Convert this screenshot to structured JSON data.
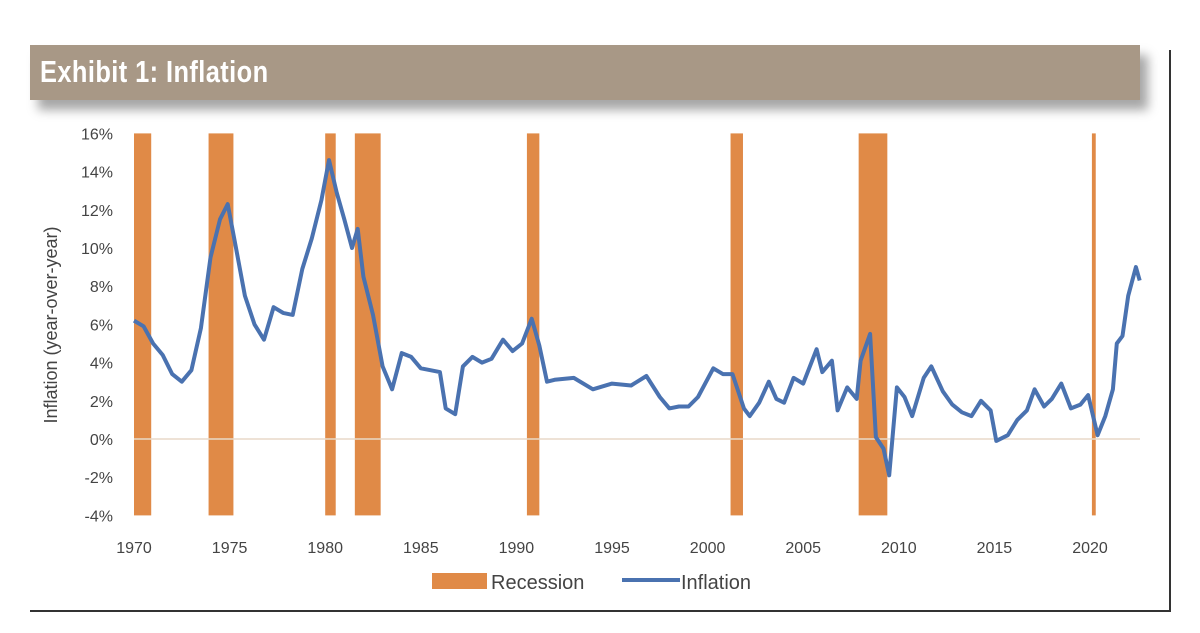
{
  "chart_data": {
    "type": "line",
    "title": "Exhibit 1:  Inflation",
    "ylabel": "Inflation (year-over-year)",
    "xlabel": "",
    "xlim": [
      1970,
      2022.7
    ],
    "ylim": [
      -4,
      16
    ],
    "x_ticks": [
      "1970",
      "1975",
      "1980",
      "1985",
      "1990",
      "1995",
      "2000",
      "2005",
      "2010",
      "2015",
      "2020"
    ],
    "y_ticks": [
      "16%",
      "14%",
      "12%",
      "10%",
      "8%",
      "6%",
      "4%",
      "2%",
      "0%",
      "-2%",
      "-4%"
    ],
    "grid": false,
    "legend_position": "bottom",
    "legend": [
      "Recession",
      "Inflation"
    ],
    "colors": {
      "recession": "#e08a47",
      "inflation": "#4a72b0",
      "header": "#a89886",
      "zero_line": "#e8d9c8"
    },
    "recessions": [
      [
        1970.0,
        1970.9
      ],
      [
        1973.9,
        1975.2
      ],
      [
        1980.0,
        1980.55
      ],
      [
        1981.55,
        1982.9
      ],
      [
        1990.55,
        1991.2
      ],
      [
        2001.2,
        2001.85
      ],
      [
        2007.9,
        2009.4
      ],
      [
        2020.1,
        2020.3
      ]
    ],
    "series": [
      {
        "name": "Inflation",
        "points": [
          [
            1970.0,
            6.2
          ],
          [
            1970.5,
            5.9
          ],
          [
            1971.0,
            5.0
          ],
          [
            1971.5,
            4.4
          ],
          [
            1972.0,
            3.4
          ],
          [
            1972.5,
            3.0
          ],
          [
            1973.0,
            3.6
          ],
          [
            1973.5,
            5.8
          ],
          [
            1974.0,
            9.5
          ],
          [
            1974.5,
            11.5
          ],
          [
            1974.9,
            12.3
          ],
          [
            1975.3,
            10.2
          ],
          [
            1975.8,
            7.5
          ],
          [
            1976.3,
            6.0
          ],
          [
            1976.8,
            5.2
          ],
          [
            1977.3,
            6.9
          ],
          [
            1977.8,
            6.6
          ],
          [
            1978.3,
            6.5
          ],
          [
            1978.8,
            8.9
          ],
          [
            1979.3,
            10.5
          ],
          [
            1979.8,
            12.5
          ],
          [
            1980.2,
            14.6
          ],
          [
            1980.6,
            12.9
          ],
          [
            1981.0,
            11.5
          ],
          [
            1981.4,
            10.0
          ],
          [
            1981.7,
            11.0
          ],
          [
            1982.0,
            8.5
          ],
          [
            1982.5,
            6.5
          ],
          [
            1983.0,
            3.8
          ],
          [
            1983.5,
            2.6
          ],
          [
            1984.0,
            4.5
          ],
          [
            1984.5,
            4.3
          ],
          [
            1985.0,
            3.7
          ],
          [
            1985.5,
            3.6
          ],
          [
            1986.0,
            3.5
          ],
          [
            1986.3,
            1.6
          ],
          [
            1986.8,
            1.3
          ],
          [
            1987.2,
            3.8
          ],
          [
            1987.7,
            4.3
          ],
          [
            1988.2,
            4.0
          ],
          [
            1988.7,
            4.2
          ],
          [
            1989.3,
            5.2
          ],
          [
            1989.8,
            4.6
          ],
          [
            1990.3,
            5.0
          ],
          [
            1990.8,
            6.3
          ],
          [
            1991.2,
            4.9
          ],
          [
            1991.6,
            3.0
          ],
          [
            1992.0,
            3.1
          ],
          [
            1993.0,
            3.2
          ],
          [
            1994.0,
            2.6
          ],
          [
            1995.0,
            2.9
          ],
          [
            1996.0,
            2.8
          ],
          [
            1996.8,
            3.3
          ],
          [
            1997.5,
            2.2
          ],
          [
            1998.0,
            1.6
          ],
          [
            1998.5,
            1.7
          ],
          [
            1999.0,
            1.7
          ],
          [
            1999.5,
            2.2
          ],
          [
            2000.3,
            3.7
          ],
          [
            2000.8,
            3.4
          ],
          [
            2001.3,
            3.4
          ],
          [
            2001.9,
            1.6
          ],
          [
            2002.2,
            1.2
          ],
          [
            2002.7,
            1.9
          ],
          [
            2003.2,
            3.0
          ],
          [
            2003.6,
            2.1
          ],
          [
            2004.0,
            1.9
          ],
          [
            2004.5,
            3.2
          ],
          [
            2005.0,
            2.9
          ],
          [
            2005.7,
            4.7
          ],
          [
            2006.0,
            3.5
          ],
          [
            2006.5,
            4.1
          ],
          [
            2006.8,
            1.5
          ],
          [
            2007.3,
            2.7
          ],
          [
            2007.8,
            2.1
          ],
          [
            2008.0,
            4.1
          ],
          [
            2008.5,
            5.5
          ],
          [
            2008.8,
            0.1
          ],
          [
            2009.2,
            -0.5
          ],
          [
            2009.5,
            -1.9
          ],
          [
            2009.9,
            2.7
          ],
          [
            2010.3,
            2.2
          ],
          [
            2010.7,
            1.2
          ],
          [
            2011.3,
            3.2
          ],
          [
            2011.7,
            3.8
          ],
          [
            2012.3,
            2.5
          ],
          [
            2012.8,
            1.8
          ],
          [
            2013.3,
            1.4
          ],
          [
            2013.8,
            1.2
          ],
          [
            2014.3,
            2.0
          ],
          [
            2014.8,
            1.5
          ],
          [
            2015.1,
            -0.1
          ],
          [
            2015.7,
            0.2
          ],
          [
            2016.2,
            1.0
          ],
          [
            2016.7,
            1.5
          ],
          [
            2017.1,
            2.6
          ],
          [
            2017.6,
            1.7
          ],
          [
            2018.0,
            2.1
          ],
          [
            2018.5,
            2.9
          ],
          [
            2019.0,
            1.6
          ],
          [
            2019.5,
            1.8
          ],
          [
            2019.9,
            2.3
          ],
          [
            2020.4,
            0.2
          ],
          [
            2020.8,
            1.2
          ],
          [
            2021.2,
            2.6
          ],
          [
            2021.4,
            5.0
          ],
          [
            2021.7,
            5.4
          ],
          [
            2022.0,
            7.5
          ],
          [
            2022.4,
            9.0
          ],
          [
            2022.6,
            8.3
          ]
        ]
      }
    ]
  }
}
